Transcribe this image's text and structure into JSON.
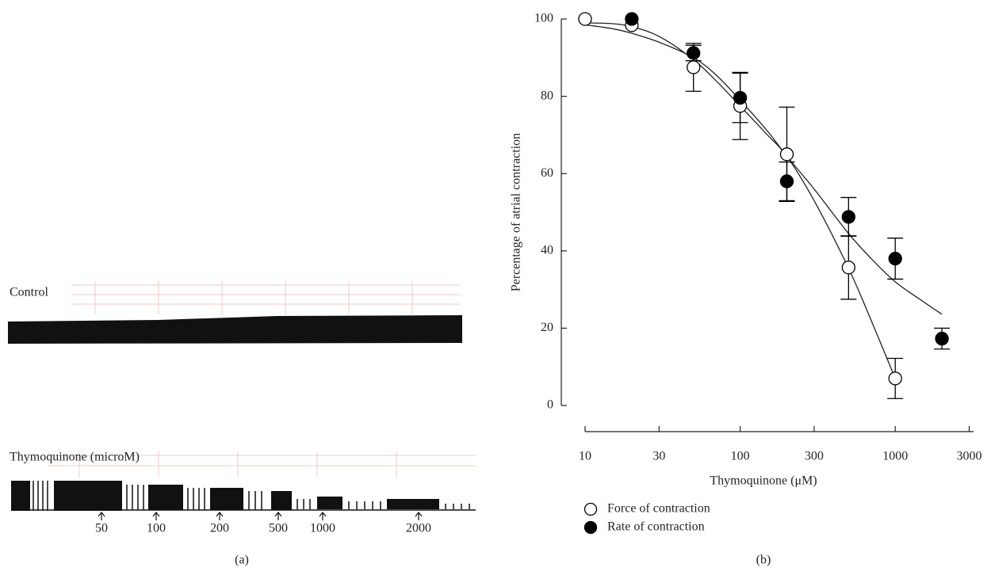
{
  "panel_a": {
    "control_label": "Control",
    "treatment_label": "Thymoquinone (microM)",
    "markers": [
      "50",
      "100",
      "200",
      "500",
      "1000",
      "2000"
    ],
    "caption": "(a)"
  },
  "chart_data": {
    "type": "scatter",
    "caption": "(b)",
    "xlabel": "Thymoquinone (μM)",
    "ylabel": "Percentage of atrial contraction",
    "xscale": "log",
    "x": [
      10,
      20,
      50,
      100,
      200,
      500,
      1000,
      2000
    ],
    "series": [
      {
        "name": "Force of contraction",
        "color": "#000000",
        "marker": "open",
        "values": [
          100,
          98.4,
          87.5,
          77.5,
          65,
          35.7,
          7,
          null
        ],
        "errors": [
          null,
          null,
          6.2,
          8.7,
          12.2,
          8.2,
          5.2,
          null
        ]
      },
      {
        "name": "Rate of contraction",
        "color": "#000000",
        "marker": "filled",
        "values": [
          null,
          100,
          91.2,
          79.6,
          58,
          48.8,
          38,
          17.3
        ],
        "errors": [
          null,
          null,
          2,
          6.4,
          5,
          5,
          5.3,
          2.7
        ]
      }
    ],
    "fits": [
      {
        "x": [
          10,
          15,
          20,
          30,
          50,
          70,
          100,
          150,
          200,
          300,
          500,
          700,
          1000
        ],
        "y": [
          99,
          98.8,
          98,
          95.5,
          89.5,
          84,
          77.5,
          70,
          64.5,
          53,
          35.5,
          22,
          7
        ]
      },
      {
        "x": [
          10,
          15,
          20,
          30,
          50,
          70,
          100,
          150,
          200,
          300,
          500,
          700,
          1000,
          1500,
          2000
        ],
        "y": [
          98.5,
          97.5,
          96.3,
          94,
          90,
          85.5,
          79,
          71,
          64.5,
          56,
          44.5,
          38,
          32,
          27,
          23.6
        ]
      }
    ],
    "xlim": [
      10,
      3200
    ],
    "ylim": [
      0,
      100
    ],
    "xticks": [
      10,
      30,
      100,
      300,
      1000,
      3000
    ],
    "yticks": [
      0,
      20,
      40,
      60,
      80,
      100
    ]
  }
}
